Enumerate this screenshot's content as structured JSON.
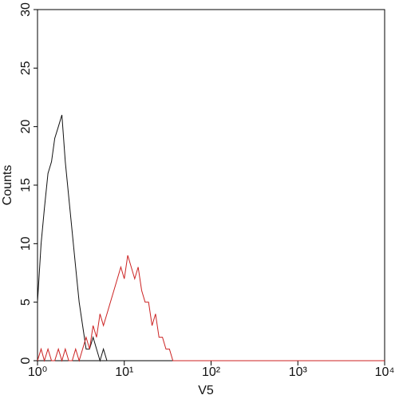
{
  "chart_data": {
    "type": "line",
    "log_x": true,
    "grid": false,
    "xlabel": "V5",
    "ylabel": "Counts",
    "x": [
      1,
      1.1,
      1.2,
      1.32,
      1.45,
      1.58,
      1.74,
      1.91,
      2.09,
      2.29,
      2.51,
      2.75,
      3.02,
      3.31,
      3.63,
      3.98,
      4.37,
      4.79,
      5.25,
      5.75,
      6.31,
      6.92,
      7.59,
      8.32,
      9.12,
      10,
      10.96,
      12.02,
      13.18,
      14.45,
      15.85,
      17.38,
      19.05,
      20.89,
      22.91,
      25.12,
      27.54,
      30.2,
      33.11,
      36.31,
      39.81,
      43.65,
      47.86,
      52.48,
      57.54,
      10000
    ],
    "series": [
      {
        "color": "#111111",
        "values": [
          5,
          10,
          13,
          16,
          17,
          19,
          20,
          21,
          17,
          14,
          11,
          8,
          5,
          3,
          1,
          1,
          2,
          1,
          0,
          1,
          0,
          0,
          null,
          null,
          null,
          null,
          null,
          null,
          null,
          null,
          null,
          null,
          null,
          null,
          null,
          null,
          null,
          null,
          null,
          null,
          null,
          null,
          null,
          null,
          null,
          null
        ]
      },
      {
        "color": "#cc2222",
        "values": [
          0,
          1,
          0,
          1,
          0,
          0,
          1,
          0,
          1,
          0,
          0,
          1,
          0,
          1,
          2,
          1,
          3,
          2,
          4,
          3,
          4,
          5,
          6,
          7,
          8,
          7,
          9,
          8,
          7,
          8,
          6,
          5,
          5,
          3,
          4,
          2,
          2,
          1,
          1,
          0,
          0,
          0,
          0,
          0,
          0,
          0
        ]
      }
    ],
    "xlim": [
      1,
      10000
    ],
    "xticks": [
      {
        "value": 1,
        "label": "10⁰"
      },
      {
        "value": 10,
        "label": "10¹"
      },
      {
        "value": 100,
        "label": "10²"
      },
      {
        "value": 1000,
        "label": "10³"
      },
      {
        "value": 10000,
        "label": "10⁴"
      }
    ],
    "ylim": [
      0,
      30
    ],
    "yticks": [
      0,
      5,
      10,
      15,
      20,
      25,
      30
    ]
  }
}
